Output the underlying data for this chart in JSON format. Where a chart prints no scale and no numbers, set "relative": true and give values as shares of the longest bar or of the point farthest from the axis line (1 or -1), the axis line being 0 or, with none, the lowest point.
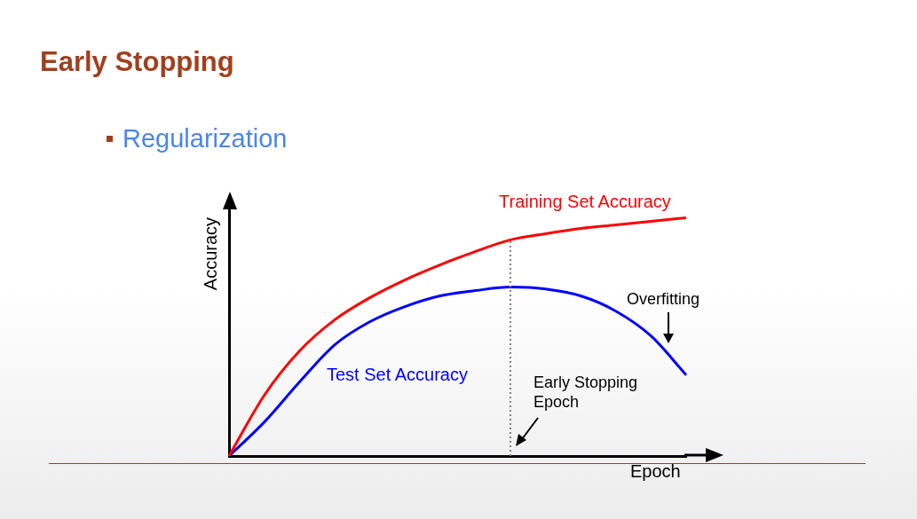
{
  "chart_data": {
    "type": "line",
    "title": "Early Stopping",
    "subtitle": "Regularization",
    "xlabel": "Epoch",
    "ylabel": "Accuracy",
    "relative": true,
    "categories": [
      null,
      null,
      null,
      null,
      null,
      null,
      null,
      null,
      null,
      null,
      null,
      null,
      null,
      null
    ],
    "series": [
      {
        "name": "Training Set Accuracy",
        "color": "#ff0000",
        "values": [
          0,
          0.254,
          0.44,
          0.571,
          0.664,
          0.739,
          0.802,
          0.858,
          0.907,
          0.933,
          0.955,
          0.97,
          0.985,
          1
        ]
      },
      {
        "name": "Test Set Accuracy",
        "color": "#0000ff",
        "values": [
          0,
          0.142,
          0.31,
          0.466,
          0.563,
          0.627,
          0.672,
          0.694,
          0.709,
          0.701,
          0.672,
          0.608,
          0.504,
          0.34
        ]
      }
    ],
    "annotations": [
      "Overfitting",
      "Early Stopping Epoch"
    ],
    "legend": false,
    "grid": false,
    "marker": "none",
    "line_style": "solid"
  }
}
